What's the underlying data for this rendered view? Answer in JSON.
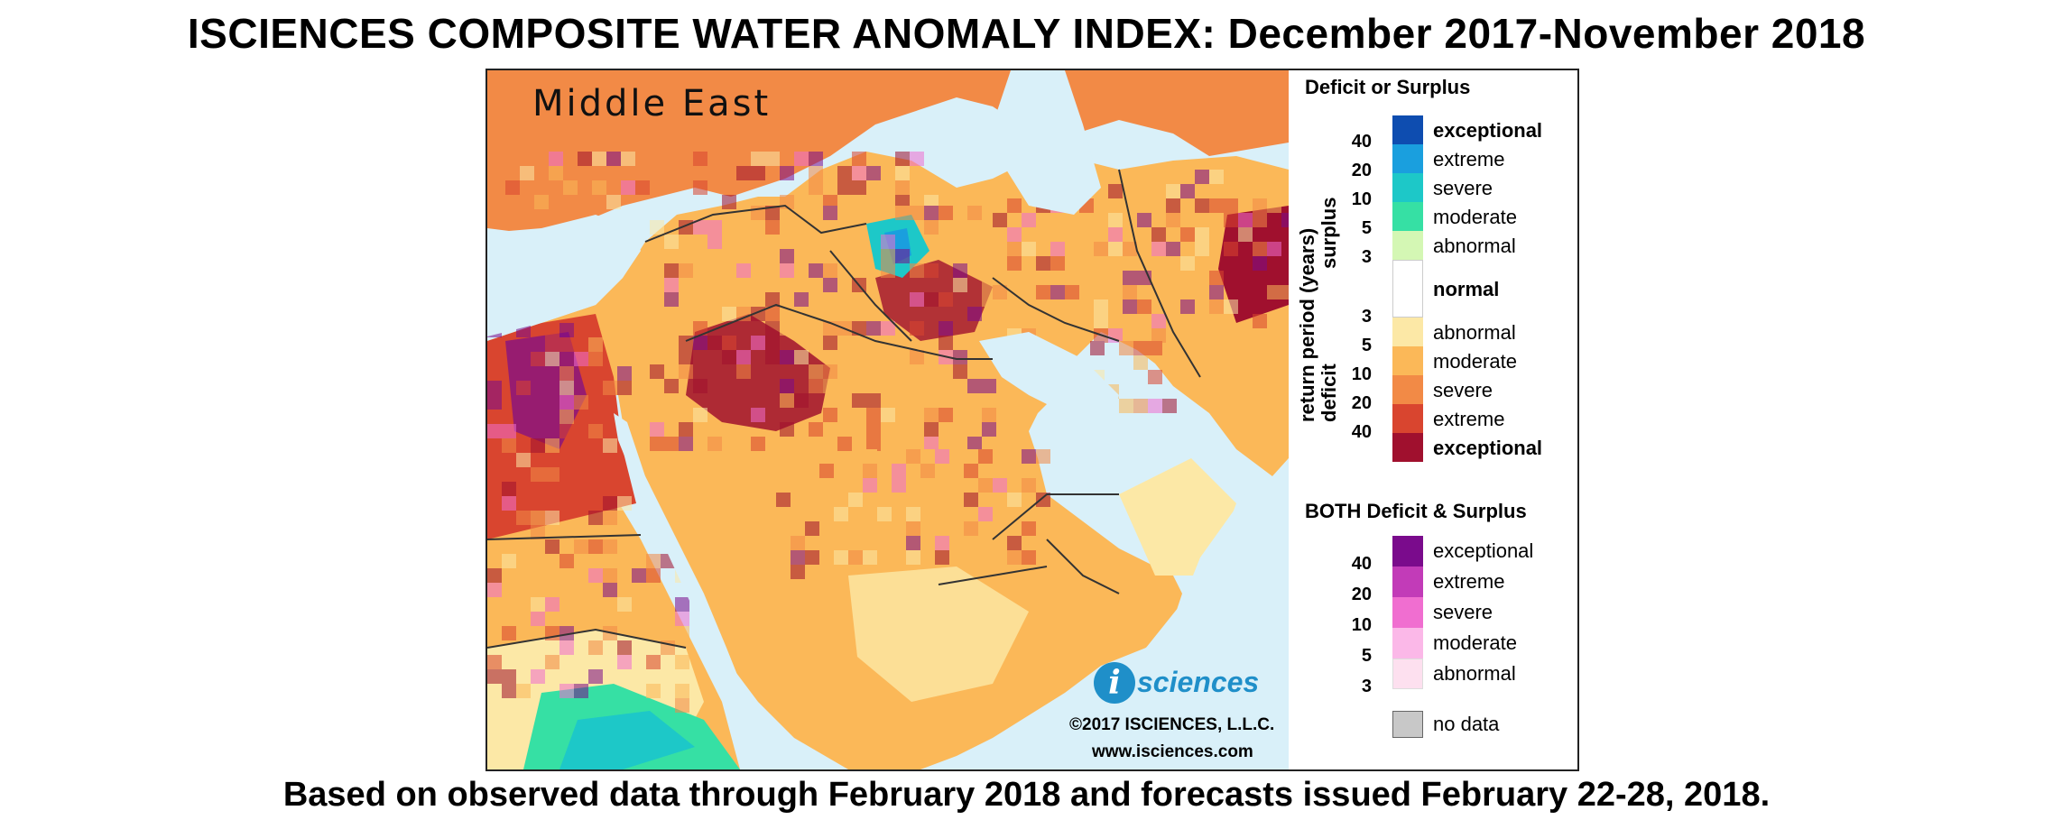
{
  "title": "ISCIENCES COMPOSITE WATER ANOMALY INDEX: December 2017-November 2018",
  "footer": "Based on observed data through February 2018 and forecasts issued February 22-28, 2018.",
  "map": {
    "region_label": "Middle East",
    "logo_letter": "i",
    "logo_text": "sciences",
    "copyright": "©2017 ISCIENCES, L.L.C.",
    "website": "www.isciences.com",
    "colors": {
      "water": "#d9f0f9",
      "normal": "#ffffff",
      "deficit_abnormal": "#fce8a6",
      "deficit_moderate": "#fbb858",
      "deficit_severe": "#f28a46",
      "deficit_extreme": "#d9452f",
      "deficit_exceptional": "#a0102e",
      "surplus_abnormal": "#d4f7b4",
      "surplus_moderate": "#36e0a4",
      "surplus_severe": "#1dc8c8",
      "surplus_extreme": "#1a9fde",
      "surplus_exceptional": "#0e4db0",
      "both_exceptional": "#7a0b8c",
      "both_extreme": "#c23bb8",
      "both_severe": "#f06ed0",
      "both_moderate": "#fbb8e8",
      "both_abnormal": "#fde0ef",
      "no_data": "#c8c8c8"
    }
  },
  "legend": {
    "header1": "Deficit or Surplus",
    "vertical_axis": "return period (years)",
    "surplus_word": "surplus",
    "deficit_word": "deficit",
    "surplus_items": [
      "exceptional",
      "extreme",
      "severe",
      "moderate",
      "abnormal"
    ],
    "surplus_ticks": [
      "40",
      "20",
      "10",
      "5",
      "3"
    ],
    "normal_label": "normal",
    "deficit_items": [
      "abnormal",
      "moderate",
      "severe",
      "extreme",
      "exceptional"
    ],
    "deficit_ticks": [
      "3",
      "5",
      "10",
      "20",
      "40"
    ],
    "header2": "BOTH Deficit & Surplus",
    "both_items": [
      "exceptional",
      "extreme",
      "severe",
      "moderate",
      "abnormal"
    ],
    "both_ticks": [
      "40",
      "20",
      "10",
      "5",
      "3"
    ],
    "no_data_label": "no data"
  }
}
